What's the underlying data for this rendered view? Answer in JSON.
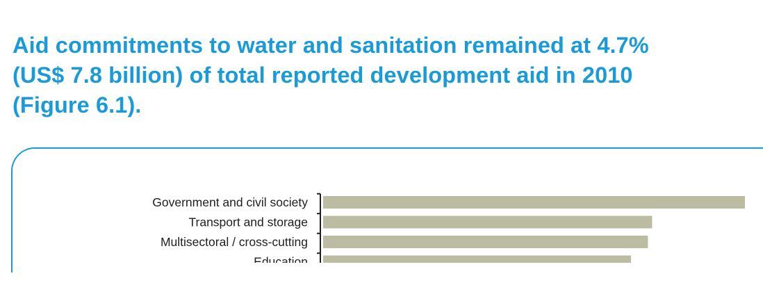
{
  "headline": {
    "line1": "Aid commitments to water and sanitation remained at 4.7%",
    "line2": "(US$ 7.8 billion) of total reported development aid in 2010",
    "line3": "(Figure 6.1)."
  },
  "colors": {
    "headline": "#1a9bd7",
    "frame": "#1a9bd7",
    "bar": "#bcbca2",
    "axis": "#1e1e1e",
    "label": "#1e1e1e"
  },
  "chart_data": {
    "type": "bar",
    "orientation": "horizontal",
    "title": "",
    "xlabel": "",
    "ylabel": "",
    "grid": false,
    "categories": [
      "Government and civil society",
      "Transport and storage",
      "Multisectoral / cross-cutting",
      "Education"
    ],
    "values": [
      100,
      78,
      77,
      73
    ],
    "value_note": "relative bar lengths; the longest bar is cropped at the right edge and no axis values are visible",
    "xlim": [
      0,
      100
    ]
  }
}
